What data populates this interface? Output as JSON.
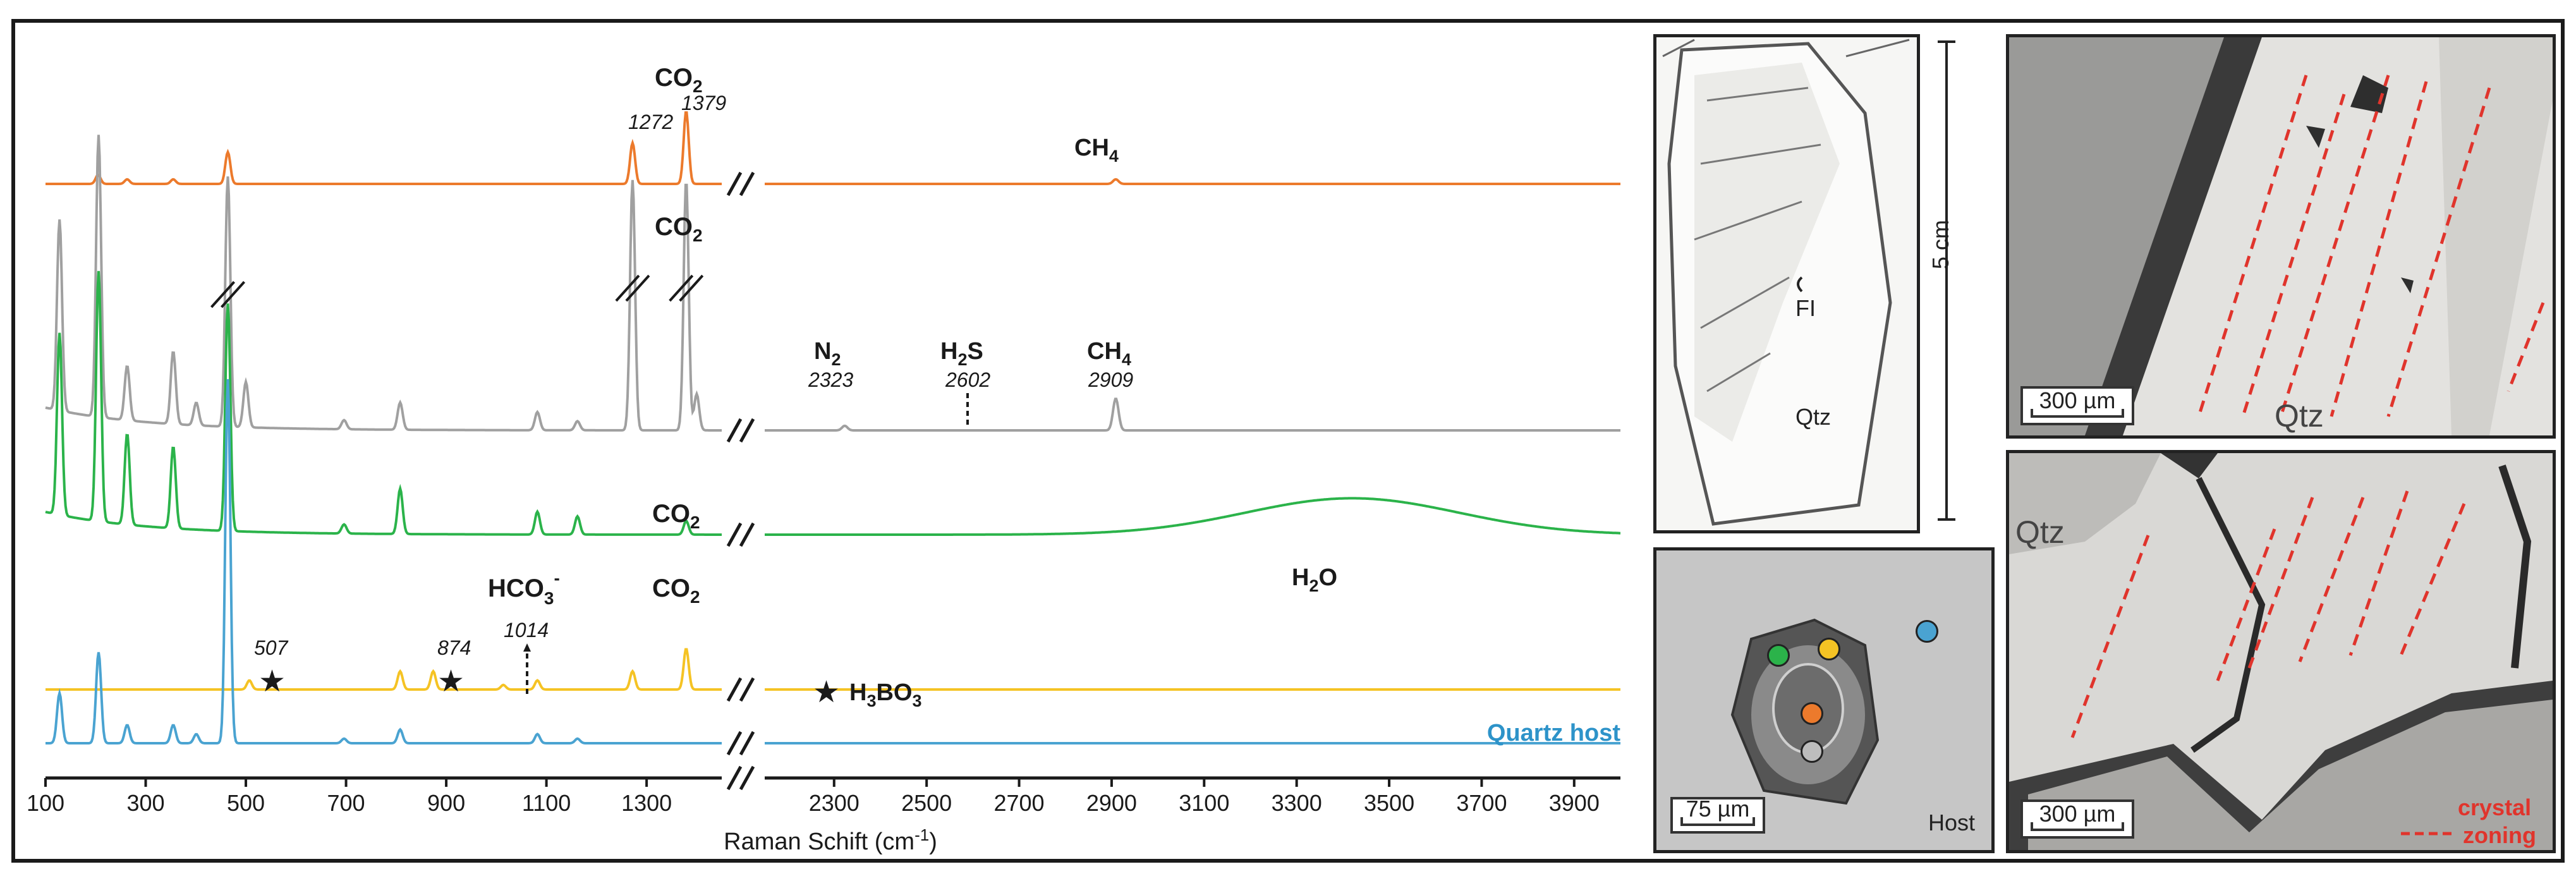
{
  "chart_data": {
    "type": "line",
    "xlabel": "Raman Schift (cm⁻¹)",
    "x_axis_segments": [
      {
        "range": [
          100,
          1450
        ],
        "ticks": [
          100,
          300,
          500,
          700,
          900,
          1100,
          1300
        ]
      },
      {
        "range": [
          2150,
          4000
        ],
        "ticks": [
          2300,
          2500,
          2700,
          2900,
          3100,
          3300,
          3500,
          3700,
          3900
        ]
      }
    ],
    "x_break": [
      1450,
      2150
    ],
    "y_axis": "none (relative intensity, stacked offsets)",
    "series": [
      {
        "name": "CO2",
        "color": "#ec7a2c",
        "peaks": [
          [
            205,
            0.02
          ],
          [
            263,
            0.01
          ],
          [
            355,
            0.01
          ],
          [
            464,
            0.07
          ],
          [
            1272,
            0.09
          ],
          [
            1379,
            0.16
          ],
          [
            2909,
            0.01
          ]
        ]
      },
      {
        "name": "CO2",
        "color": "#a0a0a0",
        "peaks": [
          [
            128,
            0.42
          ],
          [
            206,
            0.62
          ],
          [
            263,
            0.12
          ],
          [
            355,
            0.16
          ],
          [
            401,
            0.05
          ],
          [
            464,
            0.55
          ],
          [
            500,
            0.1
          ],
          [
            696,
            0.02
          ],
          [
            808,
            0.06
          ],
          [
            1082,
            0.04
          ],
          [
            1162,
            0.02
          ],
          [
            1272,
            0.55
          ],
          [
            1379,
            0.55
          ],
          [
            1400,
            0.08
          ],
          [
            2323,
            0.01
          ],
          [
            2909,
            0.07
          ]
        ]
      },
      {
        "name": "H2O",
        "color": "#2bb34a",
        "peaks": [
          [
            128,
            0.4
          ],
          [
            206,
            0.55
          ],
          [
            263,
            0.2
          ],
          [
            355,
            0.18
          ],
          [
            464,
            0.5
          ],
          [
            696,
            0.02
          ],
          [
            808,
            0.1
          ],
          [
            1082,
            0.05
          ],
          [
            1162,
            0.04
          ],
          [
            1379,
            0.03
          ]
        ],
        "broad_band": {
          "center": 3420,
          "height": 0.08
        }
      },
      {
        "name": "H3BO3",
        "color": "#f5c324",
        "peaks": [
          [
            507,
            0.02
          ],
          [
            808,
            0.04
          ],
          [
            874,
            0.04
          ],
          [
            1014,
            0.01
          ],
          [
            1082,
            0.02
          ],
          [
            1272,
            0.04
          ],
          [
            1379,
            0.09
          ]
        ]
      },
      {
        "name": "Quartz host",
        "color": "#4aa3d1",
        "peaks": [
          [
            128,
            0.11
          ],
          [
            206,
            0.2
          ],
          [
            263,
            0.04
          ],
          [
            355,
            0.04
          ],
          [
            401,
            0.02
          ],
          [
            464,
            0.8
          ],
          [
            696,
            0.01
          ],
          [
            808,
            0.03
          ],
          [
            1082,
            0.02
          ],
          [
            1162,
            0.01
          ]
        ]
      }
    ],
    "annotations": [
      {
        "text": "CO₂",
        "x": 1330,
        "series": 0
      },
      {
        "text": "1272",
        "x": 1272
      },
      {
        "text": "1379",
        "x": 1379
      },
      {
        "text": "CH₄",
        "x": 2909,
        "series": 0
      },
      {
        "text": "CO₂",
        "x": 1330,
        "series": 1
      },
      {
        "text": "N₂",
        "x": 2323,
        "value": "2323"
      },
      {
        "text": "H₂S",
        "x": 2602,
        "value": "2602"
      },
      {
        "text": "CH₄",
        "x": 2909,
        "value": "2909"
      },
      {
        "text": "CO₂",
        "x": 1330,
        "series": 2
      },
      {
        "text": "H₂O",
        "x": 3420,
        "series": 2
      },
      {
        "text": "HCO₃⁻",
        "x": 1014,
        "value": "1014"
      },
      {
        "text": "CO₂",
        "x": 1330,
        "series": 3
      },
      {
        "text": "507",
        "x": 507
      },
      {
        "text": "874",
        "x": 874
      },
      {
        "text": "★ H₃BO₃"
      },
      {
        "text": "Quartz host"
      }
    ]
  },
  "labels": {
    "co2": "CO",
    "co2_sub": "2",
    "ch4": "CH",
    "ch4_sub": "4",
    "n2": "N",
    "n2_sub": "2",
    "h2s_a": "H",
    "h2s_sub": "2",
    "h2s_b": "S",
    "h2o_a": "H",
    "h2o_sub": "2",
    "h2o_b": "O",
    "hco3": "HCO",
    "hco3_sub": "3",
    "hco3_sup": "-",
    "h3bo3_a": "H",
    "h3bo3_sub1": "3",
    "h3bo3_b": "BO",
    "h3bo3_sub2": "3",
    "star": "★",
    "num_1272": "1272",
    "num_1379": "1379",
    "num_2323": "2323",
    "num_2602": "2602",
    "num_2909": "2909",
    "num_507": "507",
    "num_874": "874",
    "num_1014": "1014",
    "quartz_host": "Quartz host",
    "x_title_main": "Raman Schift (cm",
    "x_title_sup": "-1",
    "x_title_end": ")"
  },
  "photos": {
    "crystal": {
      "fi_label": "FI",
      "qtz_label": "Qtz",
      "scale_label": "5 cm"
    },
    "inclusion": {
      "scale_label": "75 µm",
      "host_label": "Host",
      "dot_colors": [
        "#2bb34a",
        "#f5c324",
        "#4aa3d1",
        "#ec7a2c",
        "#bdbdbd"
      ]
    },
    "micro_top": {
      "scale_label": "300 µm",
      "qtz_label": "Qtz"
    },
    "micro_bottom": {
      "scale_label": "300 µm",
      "qtz_label": "Qtz",
      "legend_line1": "crystal",
      "legend_line2": "zoning",
      "legend_color": "#e0342c"
    }
  }
}
